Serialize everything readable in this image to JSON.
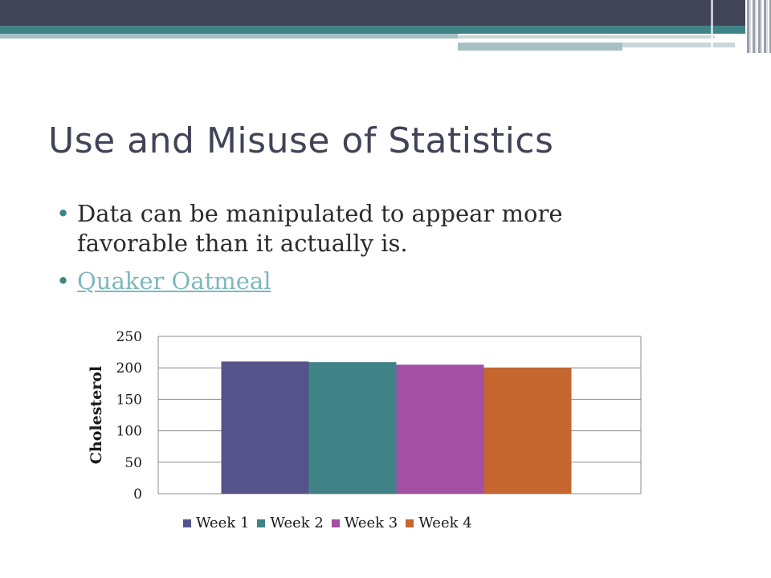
{
  "slide": {
    "title": "Use and Misuse of Statistics",
    "bullets": [
      {
        "text": "Data can be manipulated to appear more favorable than it actually is."
      },
      {
        "text": "Quaker Oatmeal",
        "link": true
      }
    ]
  },
  "chart_data": {
    "type": "bar",
    "title": "",
    "xlabel": "",
    "ylabel": "Cholesterol",
    "ylim": [
      0,
      250
    ],
    "yticks": [
      0,
      50,
      100,
      150,
      200,
      250
    ],
    "grid": true,
    "legend_position": "bottom",
    "categories": [
      ""
    ],
    "series": [
      {
        "name": "Week 1",
        "values": [
          210
        ],
        "color": "#54548a"
      },
      {
        "name": "Week 2",
        "values": [
          209
        ],
        "color": "#3f8387"
      },
      {
        "name": "Week 3",
        "values": [
          205
        ],
        "color": "#a34fa3"
      },
      {
        "name": "Week 4",
        "values": [
          200
        ],
        "color": "#c4662e"
      }
    ]
  }
}
